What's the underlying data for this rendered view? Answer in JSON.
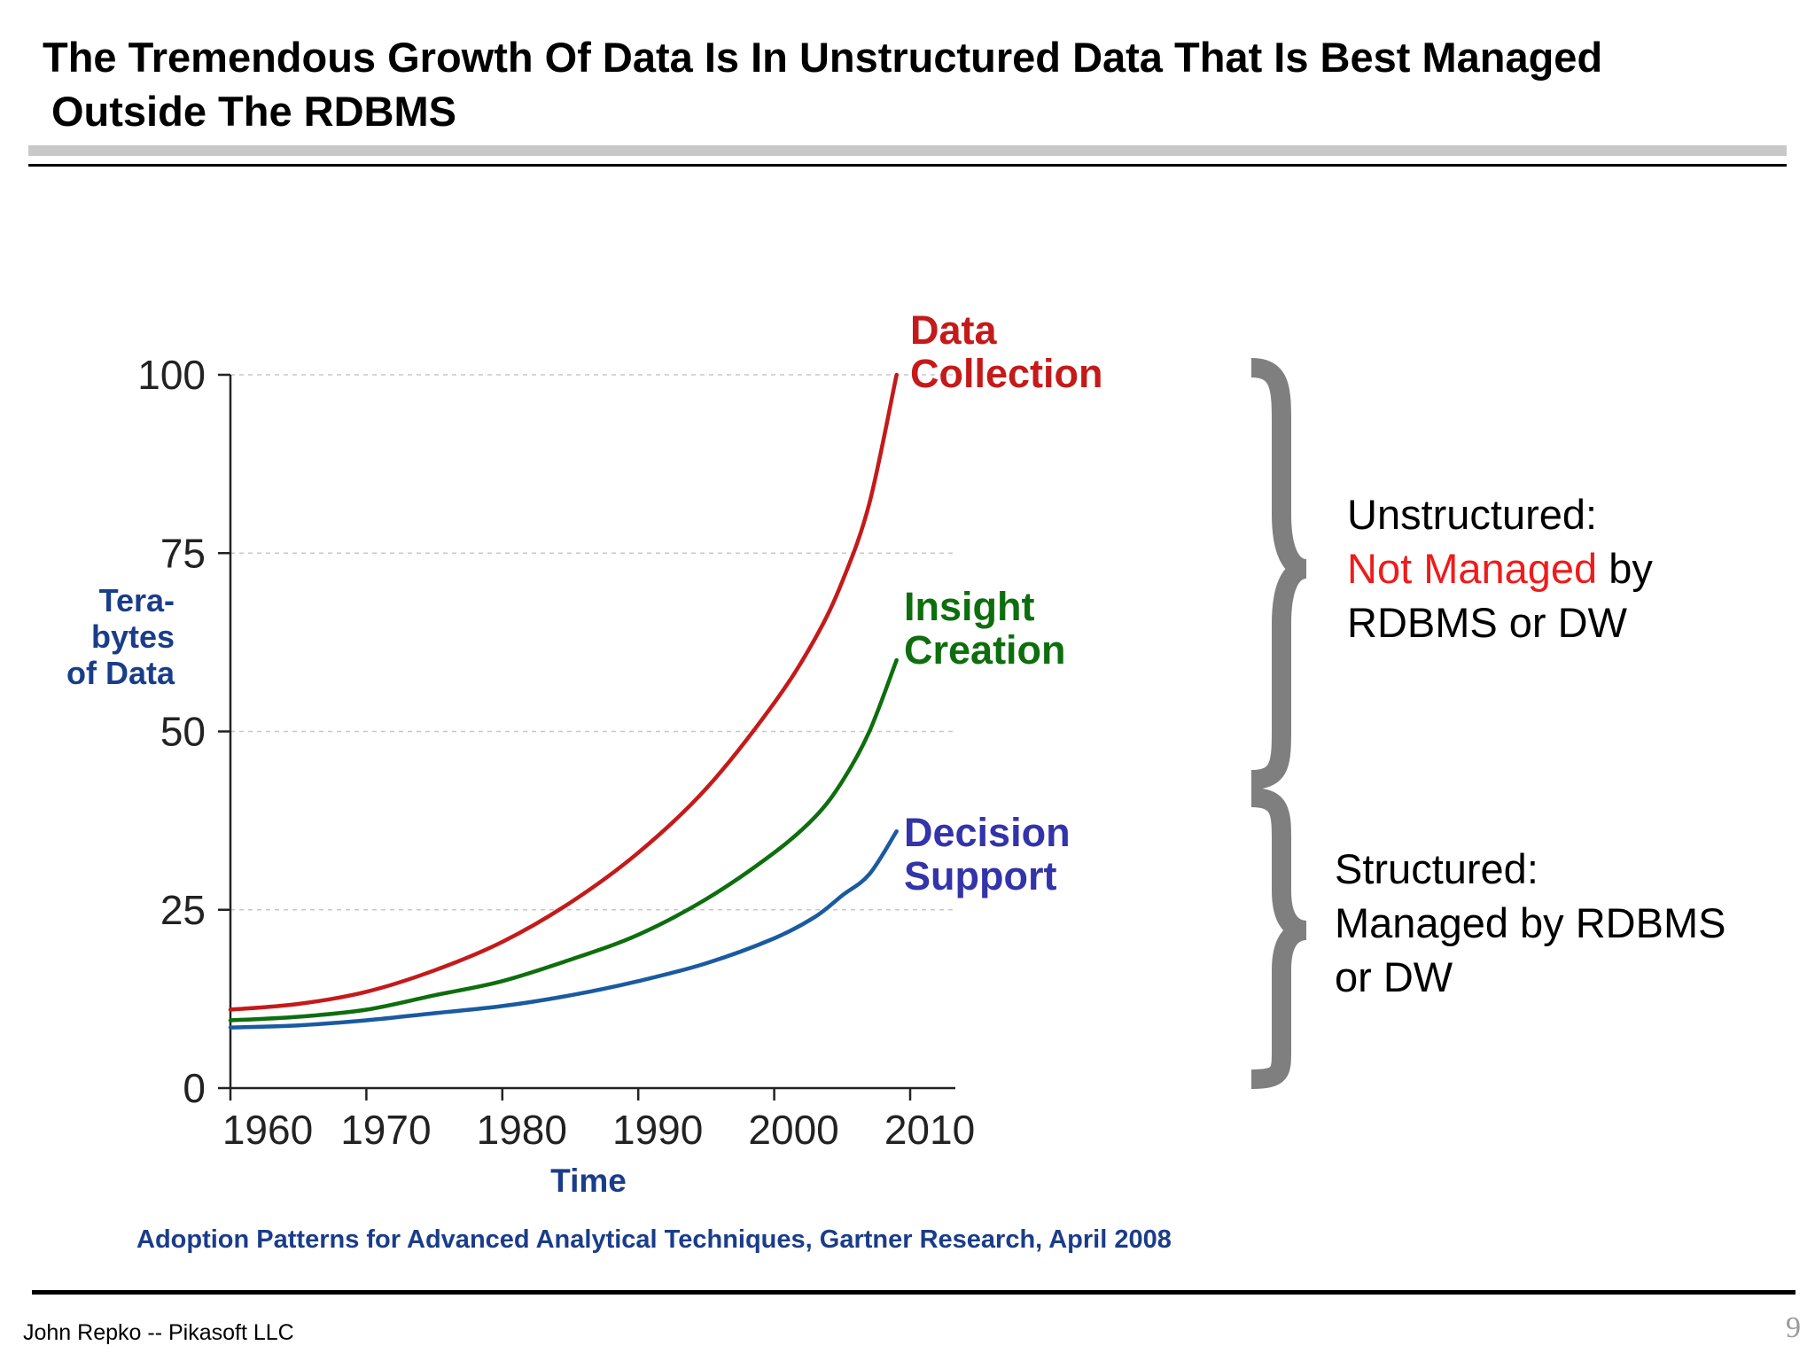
{
  "slide": {
    "title_line1": "The Tremendous Growth Of Data Is In Unstructured Data That Is Best Managed",
    "title_line2": "Outside The RDBMS",
    "footer_text": "John Repko -- Pikasoft LLC",
    "page_number": "9"
  },
  "annotations": {
    "unstructured": {
      "heading": "Unstructured:",
      "highlight": "Not Managed",
      "highlight_color": "#ee1c1c",
      "rest": " by",
      "line3": "RDBMS or DW"
    },
    "structured": {
      "heading": "Structured:",
      "line2": "Managed by RDBMS",
      "line3": "or DW"
    }
  },
  "chart_data": {
    "type": "line",
    "title": "",
    "xlabel": "Time",
    "ylabel": "Tera-bytes of Data",
    "ylabel_lines": [
      "Tera-",
      "bytes",
      "of Data"
    ],
    "xlim": [
      1960,
      2010
    ],
    "ylim": [
      0,
      100
    ],
    "xticks": [
      1960,
      1970,
      1980,
      1990,
      2000,
      2010
    ],
    "yticks": [
      0,
      25,
      50,
      75,
      100
    ],
    "grid": "horizontal dashed",
    "legend": "inline labels at line ends",
    "source": "Adoption Patterns for Advanced Analytical Techniques, Gartner Research, April 2008",
    "series": [
      {
        "name": "Data Collection",
        "label_lines": [
          "Data",
          "Collection"
        ],
        "color": "#c41a1a",
        "x": [
          1960,
          1965,
          1970,
          1975,
          1980,
          1985,
          1990,
          1995,
          2000,
          2003,
          2005,
          2007,
          2009
        ],
        "values": [
          11,
          11.8,
          13.5,
          16.5,
          20.5,
          26,
          33,
          42,
          54,
          63,
          71,
          82,
          100
        ]
      },
      {
        "name": "Insight Creation",
        "label_lines": [
          "Insight",
          "Creation"
        ],
        "color": "#0e6e0e",
        "x": [
          1960,
          1965,
          1970,
          1975,
          1980,
          1985,
          1990,
          1995,
          2000,
          2003,
          2005,
          2007,
          2009
        ],
        "values": [
          9.5,
          10,
          11,
          13,
          15,
          18,
          21.5,
          26.5,
          33,
          38,
          43,
          50,
          60
        ]
      },
      {
        "name": "Decision Support",
        "label_lines": [
          "Decision",
          "Support"
        ],
        "color": "#1a5aa0",
        "x": [
          1960,
          1965,
          1970,
          1975,
          1980,
          1985,
          1990,
          1995,
          2000,
          2003,
          2005,
          2007,
          2009
        ],
        "values": [
          8.5,
          8.8,
          9.5,
          10.5,
          11.5,
          13,
          15,
          17.5,
          21,
          24,
          27,
          30,
          36
        ]
      }
    ]
  },
  "colors": {
    "axis_label_blue": "#1a3d8a",
    "decision_label": "#3333aa",
    "brace_gray": "#7f7f7f"
  }
}
